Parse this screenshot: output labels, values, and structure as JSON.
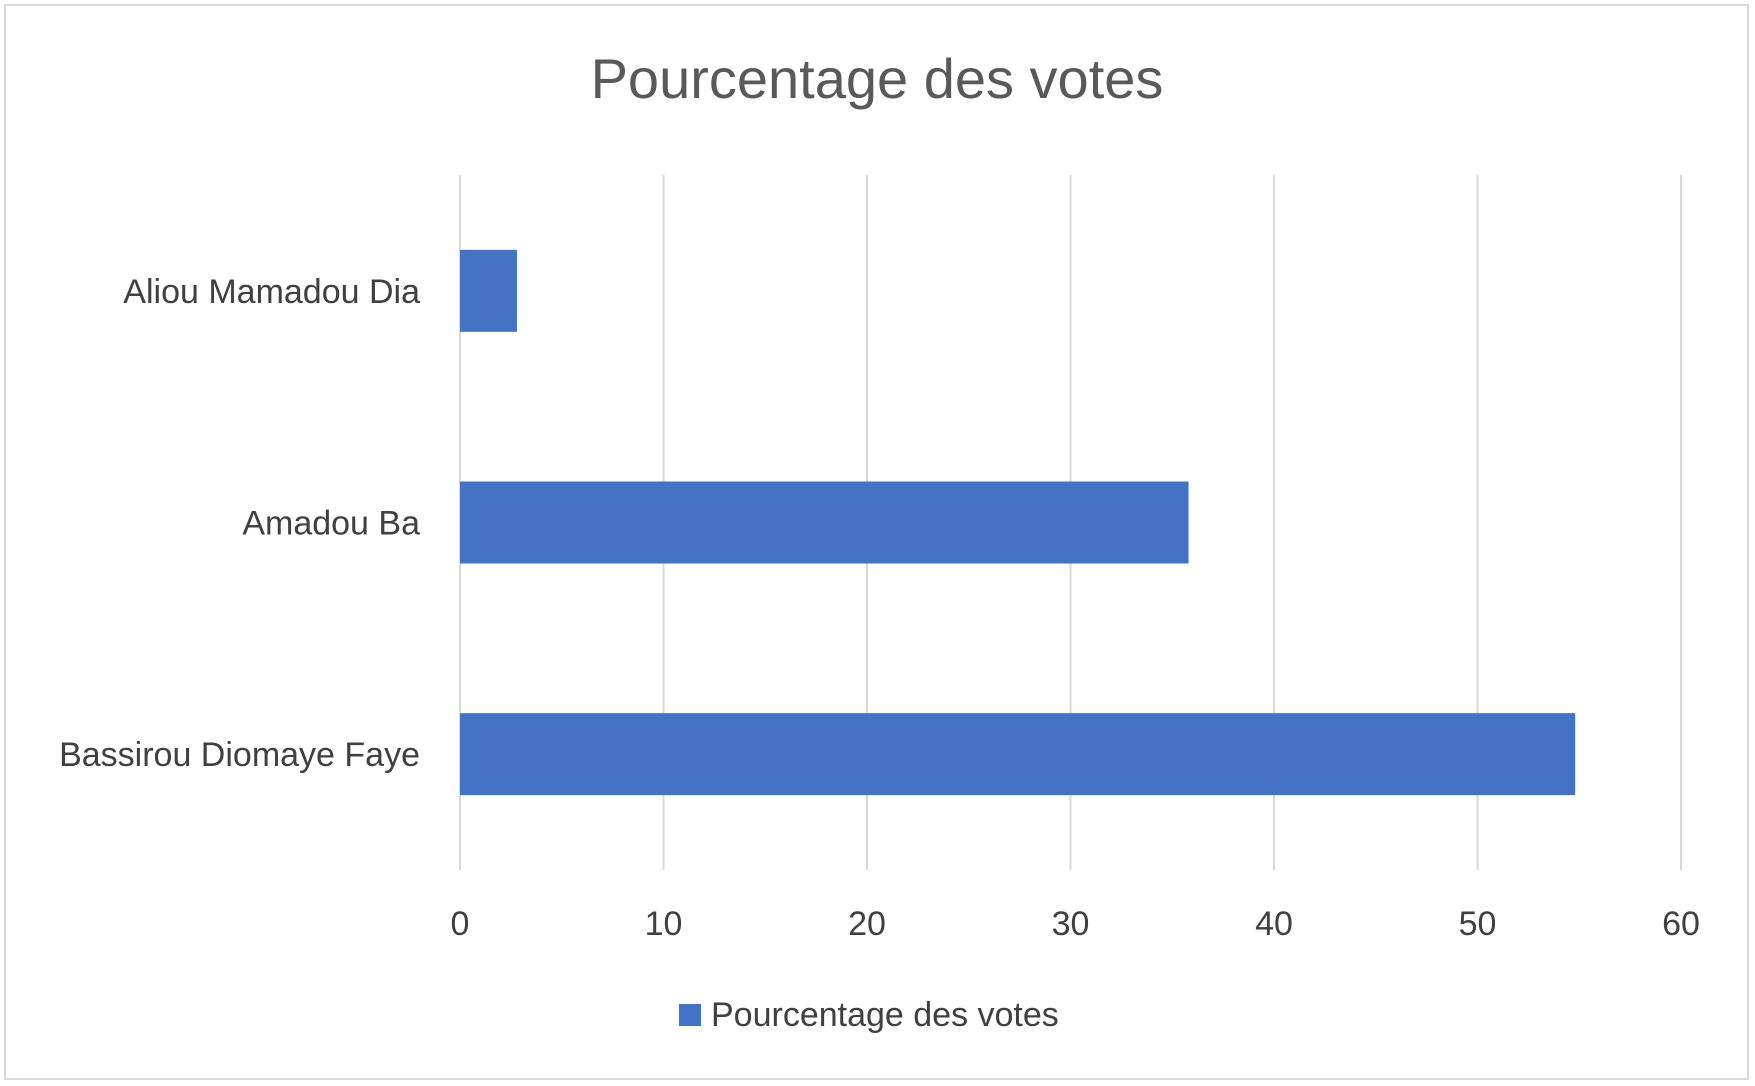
{
  "chart_data": {
    "type": "bar",
    "orientation": "horizontal",
    "title": "Pourcentage des votes",
    "categories": [
      "Bassirou Diomaye Faye",
      "Amadou Ba",
      "Aliou Mamadou Dia"
    ],
    "series": [
      {
        "name": "Pourcentage des votes",
        "values": [
          54.8,
          35.8,
          2.8
        ],
        "color": "#4472c4"
      }
    ],
    "xlim": [
      0,
      60
    ],
    "xticks": [
      "0",
      "10",
      "20",
      "30",
      "40",
      "50",
      "60"
    ],
    "xtick_values": [
      0,
      10,
      20,
      30,
      40,
      50,
      60
    ],
    "grid": "vertical",
    "legend": "bottom",
    "gridline_color": "#d9d9d9"
  }
}
